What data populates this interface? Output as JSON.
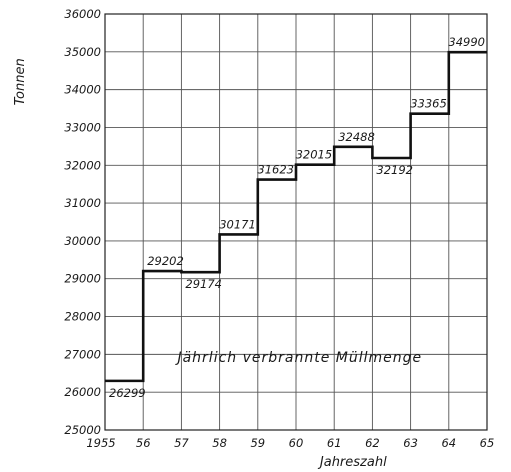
{
  "chart_data": {
    "type": "line",
    "drawstyle": "steps",
    "ylabel": "Tonnen",
    "xlabel": "Jahreszahl",
    "annotation": "Jährlich verbrannte Müllmenge",
    "grid": true,
    "xlim": [
      1955,
      1965
    ],
    "ylim": [
      25000,
      36000
    ],
    "x_ticks": [
      {
        "value": 1955,
        "label": "1955"
      },
      {
        "value": 1956,
        "label": "56"
      },
      {
        "value": 1957,
        "label": "57"
      },
      {
        "value": 1958,
        "label": "58"
      },
      {
        "value": 1959,
        "label": "59"
      },
      {
        "value": 1960,
        "label": "60"
      },
      {
        "value": 1961,
        "label": "61"
      },
      {
        "value": 1962,
        "label": "62"
      },
      {
        "value": 1963,
        "label": "63"
      },
      {
        "value": 1964,
        "label": "64"
      },
      {
        "value": 1965,
        "label": "65"
      }
    ],
    "y_ticks": [
      {
        "value": 25000,
        "label": "25000"
      },
      {
        "value": 26000,
        "label": "26000"
      },
      {
        "value": 27000,
        "label": "27000"
      },
      {
        "value": 28000,
        "label": "28000"
      },
      {
        "value": 29000,
        "label": "29000"
      },
      {
        "value": 30000,
        "label": "30000"
      },
      {
        "value": 31000,
        "label": "31000"
      },
      {
        "value": 32000,
        "label": "32000"
      },
      {
        "value": 33000,
        "label": "33000"
      },
      {
        "value": 34000,
        "label": "34000"
      },
      {
        "value": 35000,
        "label": "35000"
      },
      {
        "value": 36000,
        "label": "36000"
      }
    ],
    "series": [
      {
        "points": [
          {
            "year_start": 1955,
            "year_end": 1956,
            "value": 26299,
            "label": "26299",
            "label_pos": "below-right"
          },
          {
            "year_start": 1956,
            "year_end": 1957,
            "value": 29202,
            "label": "29202",
            "label_pos": "above"
          },
          {
            "year_start": 1957,
            "year_end": 1958,
            "value": 29174,
            "label": "29174",
            "label_pos": "below-right"
          },
          {
            "year_start": 1958,
            "year_end": 1959,
            "value": 30171,
            "label": "30171",
            "label_pos": "above-left"
          },
          {
            "year_start": 1959,
            "year_end": 1960,
            "value": 31623,
            "label": "31623",
            "label_pos": "above-left"
          },
          {
            "year_start": 1960,
            "year_end": 1961,
            "value": 32015,
            "label": "32015",
            "label_pos": "above-left"
          },
          {
            "year_start": 1961,
            "year_end": 1962,
            "value": 32488,
            "label": "32488",
            "label_pos": "above"
          },
          {
            "year_start": 1962,
            "year_end": 1963,
            "value": 32192,
            "label": "32192",
            "label_pos": "below-right"
          },
          {
            "year_start": 1963,
            "year_end": 1964,
            "value": 33365,
            "label": "33365",
            "label_pos": "above-left"
          },
          {
            "year_start": 1964,
            "year_end": 1965,
            "value": 34990,
            "label": "34990",
            "label_pos": "above-left"
          }
        ]
      }
    ]
  }
}
